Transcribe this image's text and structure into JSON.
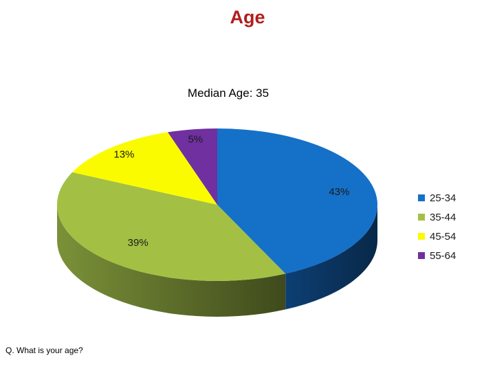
{
  "header": {
    "title": "Age"
  },
  "subtitle": "Median Age:  35",
  "footnote": "Q. What is your age?",
  "chart_data": {
    "type": "pie",
    "title": "Age",
    "categories": [
      "25-34",
      "35-44",
      "45-54",
      "55-64"
    ],
    "values": [
      43,
      39,
      13,
      5
    ],
    "labels": [
      "43%",
      "39%",
      "13%",
      "5%"
    ],
    "colors": [
      "#1570c8",
      "#a3c044",
      "#fbfb00",
      "#7030a0"
    ],
    "legend_position": "right"
  }
}
